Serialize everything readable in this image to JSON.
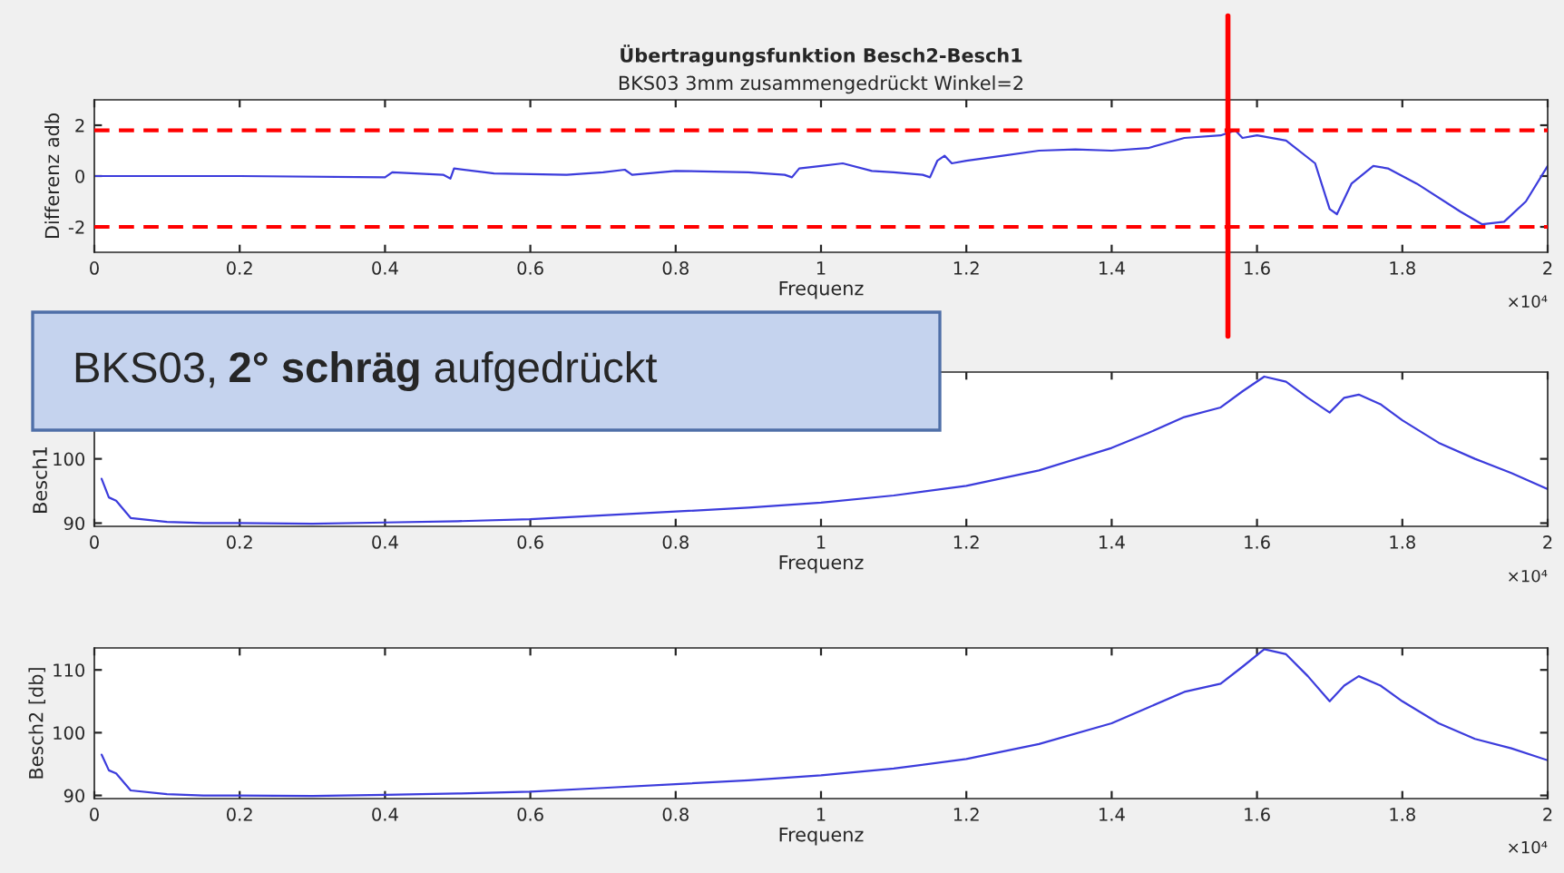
{
  "chart_data": [
    {
      "type": "line",
      "title": "Übertragungsfunktion Besch2-Besch1",
      "subtitle": "BKS03 3mm zusammengedrückt Winkel=2",
      "xlabel": "Frequenz",
      "ylabel": "Differenz adb",
      "xlim": [
        0,
        2
      ],
      "xticks": [
        0,
        0.2,
        0.4,
        0.6,
        0.8,
        1,
        1.2,
        1.4,
        1.6,
        1.8,
        2
      ],
      "ylim": [
        -3,
        3
      ],
      "yticks": [
        -2,
        0,
        2
      ],
      "grid": false,
      "legend": false,
      "ref_lines": [
        {
          "axis": "y",
          "value": 1.8,
          "color": "#ff0000",
          "line_style": "dashed"
        },
        {
          "axis": "y",
          "value": -2,
          "color": "#ff0000",
          "line_style": "dashed"
        },
        {
          "axis": "x",
          "value": 1.56,
          "color": "#ff0000",
          "line_style": "solid"
        }
      ],
      "annotations": [
        "×10⁴"
      ],
      "series": [
        {
          "color": "#3c3cdc",
          "x": [
            0,
            0.2,
            0.4,
            0.41,
            0.48,
            0.49,
            0.495,
            0.55,
            0.65,
            0.7,
            0.73,
            0.74,
            0.8,
            0.9,
            0.95,
            0.96,
            0.97,
            1.0,
            1.03,
            1.07,
            1.1,
            1.14,
            1.15,
            1.16,
            1.17,
            1.18,
            1.2,
            1.25,
            1.3,
            1.35,
            1.4,
            1.45,
            1.5,
            1.55,
            1.57,
            1.58,
            1.6,
            1.64,
            1.68,
            1.7,
            1.71,
            1.73,
            1.76,
            1.78,
            1.82,
            1.88,
            1.91,
            1.94,
            1.97,
            2
          ],
          "values": [
            0,
            0,
            -0.05,
            0.15,
            0.05,
            -0.1,
            0.3,
            0.1,
            0.05,
            0.15,
            0.25,
            0.05,
            0.2,
            0.15,
            0.05,
            -0.05,
            0.3,
            0.4,
            0.5,
            0.2,
            0.15,
            0.05,
            -0.05,
            0.6,
            0.8,
            0.5,
            0.6,
            0.8,
            1.0,
            1.05,
            1.0,
            1.1,
            1.5,
            1.6,
            1.8,
            1.5,
            1.6,
            1.4,
            0.5,
            -1.3,
            -1.5,
            -0.3,
            0.4,
            0.3,
            -0.3,
            -1.4,
            -1.9,
            -1.8,
            -1.0,
            0.4
          ]
        }
      ]
    },
    {
      "type": "line",
      "xlabel": "Frequenz",
      "ylabel": "Besch1",
      "xlim": [
        0,
        2
      ],
      "xticks": [
        0,
        0.2,
        0.4,
        0.6,
        0.8,
        1,
        1.2,
        1.4,
        1.6,
        1.8,
        2
      ],
      "ylim": [
        89.5,
        113.5
      ],
      "yticks": [
        90,
        100
      ],
      "grid": false,
      "legend": false,
      "annotations": [
        "×10⁴",
        "BKS03,",
        "2° schräg",
        "aufgedrückt"
      ],
      "series": [
        {
          "color": "#3c3cdc",
          "x": [
            0.01,
            0.02,
            0.03,
            0.05,
            0.1,
            0.15,
            0.2,
            0.3,
            0.4,
            0.5,
            0.6,
            0.7,
            0.8,
            0.9,
            1.0,
            1.1,
            1.2,
            1.3,
            1.4,
            1.45,
            1.5,
            1.55,
            1.58,
            1.61,
            1.64,
            1.67,
            1.7,
            1.72,
            1.74,
            1.77,
            1.8,
            1.85,
            1.9,
            1.95,
            2
          ],
          "values": [
            96.9,
            94,
            93.5,
            90.8,
            90.2,
            90,
            90,
            89.9,
            90.1,
            90.3,
            90.6,
            91.2,
            91.8,
            92.4,
            93.2,
            94.3,
            95.8,
            98.2,
            101.7,
            104,
            106.5,
            108,
            110.5,
            112.8,
            112,
            109.5,
            107.2,
            109.5,
            110,
            108.5,
            106,
            102.5,
            100,
            97.8,
            95.3
          ]
        }
      ]
    },
    {
      "type": "line",
      "xlabel": "Frequenz",
      "ylabel": "Besch2 [db]",
      "xlim": [
        0,
        2
      ],
      "xticks": [
        0,
        0.2,
        0.4,
        0.6,
        0.8,
        1,
        1.2,
        1.4,
        1.6,
        1.8,
        2
      ],
      "ylim": [
        89.5,
        113.5
      ],
      "yticks": [
        90,
        100,
        110
      ],
      "grid": false,
      "legend": false,
      "annotations": [
        "×10⁴"
      ],
      "series": [
        {
          "color": "#3c3cdc",
          "x": [
            0.01,
            0.02,
            0.03,
            0.05,
            0.1,
            0.15,
            0.2,
            0.3,
            0.4,
            0.5,
            0.6,
            0.7,
            0.8,
            0.9,
            1.0,
            1.1,
            1.2,
            1.3,
            1.4,
            1.45,
            1.5,
            1.55,
            1.58,
            1.61,
            1.64,
            1.67,
            1.7,
            1.72,
            1.74,
            1.77,
            1.8,
            1.85,
            1.9,
            1.95,
            2
          ],
          "values": [
            96.5,
            94,
            93.5,
            90.8,
            90.2,
            90,
            90,
            89.9,
            90.1,
            90.3,
            90.6,
            91.2,
            91.8,
            92.4,
            93.2,
            94.3,
            95.8,
            98.2,
            101.5,
            104,
            106.5,
            107.8,
            110.5,
            113.3,
            112.5,
            109,
            105,
            107.5,
            109,
            107.5,
            105,
            101.5,
            99,
            97.5,
            95.6
          ]
        }
      ]
    }
  ]
}
